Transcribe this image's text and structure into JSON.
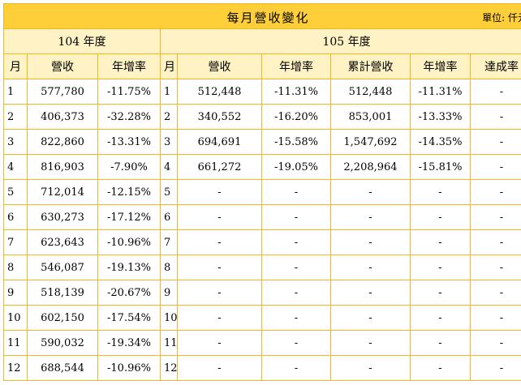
{
  "title": "每月營收變化",
  "unit": "單位: 仟元",
  "year_a": "104 年度",
  "year_b": "105 年度",
  "headers": {
    "month": "月",
    "revenue": "營收",
    "yoy": "年增率",
    "cumulative": "累計營收",
    "achievement": "達成率"
  },
  "rows": [
    {
      "m": "1",
      "rev104": "577,780",
      "yoy104": "-11.75%",
      "m2": "1",
      "rev105": "512,448",
      "yoy105": "-11.31%",
      "cum": "512,448",
      "cumyoy": "-11.31%",
      "ach": "-"
    },
    {
      "m": "2",
      "rev104": "406,373",
      "yoy104": "-32.28%",
      "m2": "2",
      "rev105": "340,552",
      "yoy105": "-16.20%",
      "cum": "853,001",
      "cumyoy": "-13.33%",
      "ach": "-"
    },
    {
      "m": "3",
      "rev104": "822,860",
      "yoy104": "-13.31%",
      "m2": "3",
      "rev105": "694,691",
      "yoy105": "-15.58%",
      "cum": "1,547,692",
      "cumyoy": "-14.35%",
      "ach": "-"
    },
    {
      "m": "4",
      "rev104": "816,903",
      "yoy104": "-7.90%",
      "m2": "4",
      "rev105": "661,272",
      "yoy105": "-19.05%",
      "cum": "2,208,964",
      "cumyoy": "-15.81%",
      "ach": "-"
    },
    {
      "m": "5",
      "rev104": "712,014",
      "yoy104": "-12.15%",
      "m2": "5",
      "rev105": "-",
      "yoy105": "-",
      "cum": "-",
      "cumyoy": "-",
      "ach": "-"
    },
    {
      "m": "6",
      "rev104": "630,273",
      "yoy104": "-17.12%",
      "m2": "6",
      "rev105": "-",
      "yoy105": "-",
      "cum": "-",
      "cumyoy": "-",
      "ach": "-"
    },
    {
      "m": "7",
      "rev104": "623,643",
      "yoy104": "-10.96%",
      "m2": "7",
      "rev105": "-",
      "yoy105": "-",
      "cum": "-",
      "cumyoy": "-",
      "ach": "-"
    },
    {
      "m": "8",
      "rev104": "546,087",
      "yoy104": "-19.13%",
      "m2": "8",
      "rev105": "-",
      "yoy105": "-",
      "cum": "-",
      "cumyoy": "-",
      "ach": "-"
    },
    {
      "m": "9",
      "rev104": "518,139",
      "yoy104": "-20.67%",
      "m2": "9",
      "rev105": "-",
      "yoy105": "-",
      "cum": "-",
      "cumyoy": "-",
      "ach": "-"
    },
    {
      "m": "10",
      "rev104": "602,150",
      "yoy104": "-17.54%",
      "m2": "10",
      "rev105": "-",
      "yoy105": "-",
      "cum": "-",
      "cumyoy": "-",
      "ach": "-"
    },
    {
      "m": "11",
      "rev104": "590,032",
      "yoy104": "-19.34%",
      "m2": "11",
      "rev105": "-",
      "yoy105": "-",
      "cum": "-",
      "cumyoy": "-",
      "ach": "-"
    },
    {
      "m": "12",
      "rev104": "688,544",
      "yoy104": "-10.96%",
      "m2": "12",
      "rev105": "-",
      "yoy105": "-",
      "cum": "-",
      "cumyoy": "-",
      "ach": "-"
    }
  ],
  "colors": {
    "title_bg": "#ffcf3a",
    "header_bg": "#fff2c4",
    "border": "#f2b623"
  }
}
